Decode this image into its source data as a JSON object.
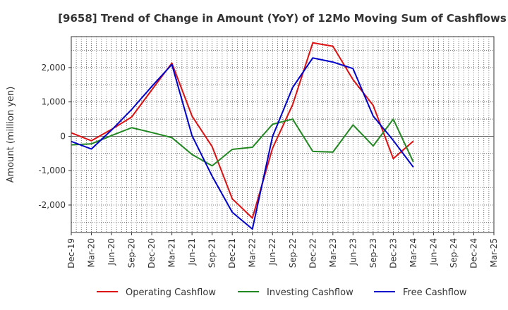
{
  "chart_data": {
    "type": "line",
    "title": "[9658]  Trend of Change in Amount (YoY) of 12Mo Moving Sum of Cashflows",
    "ylabel": "Amount (million yen)",
    "xlabel": "",
    "ylim": [
      -2800,
      2900
    ],
    "yticks": [
      -2000,
      -1000,
      0,
      1000,
      2000
    ],
    "ytick_labels": [
      "-2,000",
      "-1,000",
      "0",
      "1,000",
      "2,000"
    ],
    "categories": [
      "Dec-19",
      "Mar-20",
      "Jun-20",
      "Sep-20",
      "Dec-20",
      "Mar-21",
      "Jun-21",
      "Sep-21",
      "Dec-21",
      "Mar-22",
      "Jun-22",
      "Sep-22",
      "Dec-22",
      "Mar-23",
      "Jun-23",
      "Sep-23",
      "Dec-23",
      "Mar-24",
      "Jun-24",
      "Sep-24",
      "Dec-24",
      "Mar-25"
    ],
    "grid": true,
    "legend_position": "bottom",
    "series": [
      {
        "name": "Operating Cashflow",
        "color": "#dd1111",
        "values": [
          100,
          -130,
          200,
          560,
          1350,
          2130,
          590,
          -300,
          -1820,
          -2380,
          -350,
          920,
          2720,
          2620,
          1650,
          900,
          -650,
          -140,
          null,
          null,
          null,
          null
        ]
      },
      {
        "name": "Investing Cashflow",
        "color": "#228822",
        "values": [
          -250,
          -220,
          20,
          250,
          110,
          -40,
          -530,
          -860,
          -380,
          -320,
          350,
          500,
          -440,
          -460,
          330,
          -280,
          500,
          -750,
          null,
          null,
          null,
          null
        ]
      },
      {
        "name": "Free Cashflow",
        "color": "#0000cc",
        "values": [
          -150,
          -370,
          180,
          780,
          1450,
          2090,
          20,
          -1160,
          -2210,
          -2700,
          -10,
          1420,
          2280,
          2160,
          1970,
          590,
          -120,
          -900,
          null,
          null,
          null,
          null
        ]
      }
    ]
  }
}
